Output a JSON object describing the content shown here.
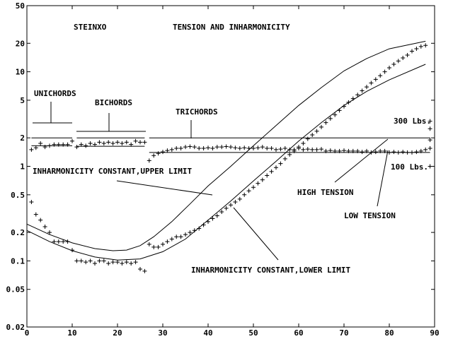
{
  "chart_data": {
    "type": "scatter",
    "title": "TENSION AND INHARMONICITY",
    "subtitle": "STEINXO",
    "xlabel": "",
    "ylabel": "",
    "y_scale": "log",
    "xlim": [
      0,
      90
    ],
    "ylim": [
      0.02,
      50
    ],
    "x_ticks": [
      "0",
      "10",
      "20",
      "30",
      "40",
      "50",
      "60",
      "70",
      "80",
      "90"
    ],
    "y_ticks": [
      {
        "v": 50,
        "label": "50"
      },
      {
        "v": 20,
        "label": "20"
      },
      {
        "v": 10,
        "label": "10"
      },
      {
        "v": 5,
        "label": "5"
      },
      {
        "v": 2,
        "label": "2"
      },
      {
        "v": 1,
        "label": "1"
      },
      {
        "v": 0.5,
        "label": "0.5"
      },
      {
        "v": 0.2,
        "label": "0.2"
      },
      {
        "v": 0.1,
        "label": "0.1"
      },
      {
        "v": 0.05,
        "label": "0.05"
      },
      {
        "v": 0.02,
        "label": "0.02"
      }
    ],
    "series": [
      {
        "name": "",
        "marker": "+",
        "points": [
          [
            1,
            0.42
          ],
          [
            2,
            0.31
          ],
          [
            3,
            0.27
          ],
          [
            4,
            0.23
          ],
          [
            5,
            0.2
          ],
          [
            6,
            0.16
          ],
          [
            7,
            0.16
          ],
          [
            8,
            0.16
          ],
          [
            9,
            0.16
          ],
          [
            10,
            0.13
          ],
          [
            11,
            0.1
          ],
          [
            12,
            0.1
          ],
          [
            13,
            0.097
          ],
          [
            14,
            0.1
          ],
          [
            15,
            0.094
          ],
          [
            16,
            0.1
          ],
          [
            17,
            0.1
          ],
          [
            18,
            0.094
          ],
          [
            19,
            0.097
          ],
          [
            20,
            0.097
          ],
          [
            21,
            0.094
          ],
          [
            22,
            0.097
          ],
          [
            23,
            0.094
          ],
          [
            24,
            0.097
          ],
          [
            25,
            0.082
          ],
          [
            26,
            0.078
          ],
          [
            27,
            0.15
          ],
          [
            28,
            0.14
          ],
          [
            29,
            0.14
          ],
          [
            30,
            0.15
          ],
          [
            31,
            0.16
          ],
          [
            32,
            0.17
          ],
          [
            33,
            0.18
          ],
          [
            34,
            0.18
          ],
          [
            35,
            0.19
          ],
          [
            36,
            0.2
          ],
          [
            37,
            0.21
          ],
          [
            38,
            0.22
          ],
          [
            39,
            0.24
          ],
          [
            40,
            0.26
          ],
          [
            41,
            0.28
          ],
          [
            42,
            0.3
          ],
          [
            43,
            0.33
          ],
          [
            44,
            0.36
          ],
          [
            45,
            0.39
          ],
          [
            46,
            0.42
          ],
          [
            47,
            0.45
          ],
          [
            48,
            0.5
          ],
          [
            49,
            0.55
          ],
          [
            50,
            0.6
          ],
          [
            51,
            0.66
          ],
          [
            52,
            0.72
          ],
          [
            53,
            0.8
          ],
          [
            54,
            0.88
          ],
          [
            55,
            0.97
          ],
          [
            56,
            1.07
          ],
          [
            57,
            1.2
          ],
          [
            58,
            1.33
          ],
          [
            59,
            1.45
          ],
          [
            60,
            1.6
          ],
          [
            61,
            1.75
          ],
          [
            62,
            1.95
          ],
          [
            63,
            2.15
          ],
          [
            64,
            2.35
          ],
          [
            65,
            2.6
          ],
          [
            66,
            2.9
          ],
          [
            67,
            3.2
          ],
          [
            68,
            3.5
          ],
          [
            69,
            3.9
          ],
          [
            70,
            4.3
          ],
          [
            71,
            4.75
          ],
          [
            72,
            5.2
          ],
          [
            73,
            5.7
          ],
          [
            74,
            6.3
          ],
          [
            75,
            6.9
          ],
          [
            76,
            7.6
          ],
          [
            77,
            8.3
          ],
          [
            78,
            9.1
          ],
          [
            79,
            10
          ],
          [
            80,
            11
          ],
          [
            81,
            12
          ],
          [
            82,
            13
          ],
          [
            83,
            14
          ],
          [
            84,
            15
          ],
          [
            85,
            16.5
          ],
          [
            86,
            17.5
          ],
          [
            87,
            18.5
          ],
          [
            88,
            19
          ]
        ]
      },
      {
        "name": "",
        "marker": "+",
        "points": [
          [
            1,
            1.5
          ],
          [
            2,
            1.57
          ],
          [
            3,
            1.75
          ],
          [
            4,
            1.6
          ],
          [
            5,
            1.65
          ],
          [
            6,
            1.7
          ],
          [
            7,
            1.7
          ],
          [
            8,
            1.7
          ],
          [
            9,
            1.7
          ],
          [
            10,
            1.85
          ],
          [
            11,
            1.6
          ],
          [
            12,
            1.7
          ],
          [
            13,
            1.65
          ],
          [
            14,
            1.75
          ],
          [
            15,
            1.7
          ],
          [
            16,
            1.8
          ],
          [
            17,
            1.75
          ],
          [
            18,
            1.8
          ],
          [
            19,
            1.75
          ],
          [
            20,
            1.8
          ],
          [
            21,
            1.75
          ],
          [
            22,
            1.8
          ],
          [
            23,
            1.7
          ],
          [
            24,
            1.85
          ],
          [
            25,
            1.8
          ],
          [
            26,
            1.8
          ],
          [
            27,
            1.15
          ],
          [
            28,
            1.3
          ],
          [
            29,
            1.37
          ],
          [
            30,
            1.42
          ],
          [
            31,
            1.47
          ],
          [
            32,
            1.5
          ],
          [
            33,
            1.55
          ],
          [
            34,
            1.55
          ],
          [
            35,
            1.6
          ],
          [
            36,
            1.62
          ],
          [
            37,
            1.6
          ],
          [
            38,
            1.55
          ],
          [
            39,
            1.55
          ],
          [
            40,
            1.57
          ],
          [
            41,
            1.55
          ],
          [
            42,
            1.6
          ],
          [
            43,
            1.6
          ],
          [
            44,
            1.62
          ],
          [
            45,
            1.6
          ],
          [
            46,
            1.57
          ],
          [
            47,
            1.55
          ],
          [
            48,
            1.57
          ],
          [
            49,
            1.55
          ],
          [
            50,
            1.55
          ],
          [
            51,
            1.57
          ],
          [
            52,
            1.6
          ],
          [
            53,
            1.55
          ],
          [
            54,
            1.55
          ],
          [
            55,
            1.5
          ],
          [
            56,
            1.52
          ],
          [
            57,
            1.55
          ],
          [
            58,
            1.5
          ],
          [
            59,
            1.5
          ],
          [
            60,
            1.55
          ],
          [
            61,
            1.5
          ],
          [
            62,
            1.52
          ],
          [
            63,
            1.5
          ],
          [
            64,
            1.5
          ],
          [
            65,
            1.52
          ],
          [
            66,
            1.45
          ],
          [
            67,
            1.47
          ],
          [
            68,
            1.45
          ],
          [
            69,
            1.45
          ],
          [
            70,
            1.47
          ],
          [
            71,
            1.45
          ],
          [
            72,
            1.45
          ],
          [
            73,
            1.45
          ],
          [
            74,
            1.42
          ],
          [
            75,
            1.45
          ],
          [
            76,
            1.4
          ],
          [
            77,
            1.42
          ],
          [
            78,
            1.45
          ],
          [
            79,
            1.45
          ],
          [
            80,
            1.4
          ],
          [
            81,
            1.42
          ],
          [
            82,
            1.4
          ],
          [
            83,
            1.42
          ],
          [
            84,
            1.4
          ],
          [
            85,
            1.4
          ],
          [
            86,
            1.42
          ],
          [
            87,
            1.45
          ],
          [
            88,
            1.5
          ],
          [
            89,
            1.55
          ],
          [
            89,
            1.9
          ],
          [
            89,
            2.5
          ],
          [
            89,
            3
          ],
          [
            89,
            1
          ]
        ]
      },
      {
        "name": "INHARMONICITY CONSTANT,UPPER LIMIT",
        "marker": "line",
        "points": [
          [
            0,
            0.245
          ],
          [
            5,
            0.19
          ],
          [
            10,
            0.155
          ],
          [
            15,
            0.135
          ],
          [
            19,
            0.128
          ],
          [
            22,
            0.13
          ],
          [
            25,
            0.145
          ],
          [
            28,
            0.18
          ],
          [
            32,
            0.26
          ],
          [
            36,
            0.4
          ],
          [
            40,
            0.62
          ],
          [
            45,
            1.0
          ],
          [
            50,
            1.65
          ],
          [
            55,
            2.7
          ],
          [
            60,
            4.4
          ],
          [
            65,
            6.8
          ],
          [
            70,
            10.2
          ],
          [
            75,
            13.8
          ],
          [
            80,
            17.5
          ],
          [
            88,
            21
          ]
        ]
      },
      {
        "name": "INHARMONICITY CONSTANT,LOWER LIMIT",
        "marker": "line",
        "points": [
          [
            0,
            0.21
          ],
          [
            5,
            0.16
          ],
          [
            10,
            0.128
          ],
          [
            15,
            0.11
          ],
          [
            20,
            0.102
          ],
          [
            25,
            0.105
          ],
          [
            30,
            0.125
          ],
          [
            35,
            0.17
          ],
          [
            40,
            0.27
          ],
          [
            45,
            0.43
          ],
          [
            50,
            0.7
          ],
          [
            55,
            1.13
          ],
          [
            60,
            1.85
          ],
          [
            65,
            2.9
          ],
          [
            70,
            4.4
          ],
          [
            75,
            6.2
          ],
          [
            80,
            8.2
          ],
          [
            88,
            12
          ]
        ]
      },
      {
        "name": "300 Lbs.",
        "marker": "line",
        "points": [
          [
            1,
            2.0
          ],
          [
            10,
            2.0
          ],
          [
            11,
            2.0
          ],
          [
            26,
            2.0
          ],
          [
            27,
            2.0
          ],
          [
            89,
            2.0
          ]
        ]
      },
      {
        "name": "100 Lbs.",
        "marker": "line",
        "points": [
          [
            1,
            1.65
          ],
          [
            10,
            1.65
          ],
          [
            11,
            1.63
          ],
          [
            26,
            1.63
          ],
          [
            27,
            1.4
          ],
          [
            89,
            1.4
          ]
        ]
      }
    ],
    "annotations": {
      "steinxo": "STEINXO",
      "title": "TENSION AND INHARMONICITY",
      "unichords": "UNICHORDS",
      "bichords": "BICHORDS",
      "trichords": "TRICHORDS",
      "lbs300": "300 Lbs.",
      "lbs100": "100 Lbs.",
      "upper": "INHARMONICITY CONSTANT,UPPER LIMIT",
      "lower": "INHARMONICITY CONSTANT,LOWER LIMIT",
      "high": "HIGH TENSION",
      "low": "LOW TENSION"
    }
  }
}
